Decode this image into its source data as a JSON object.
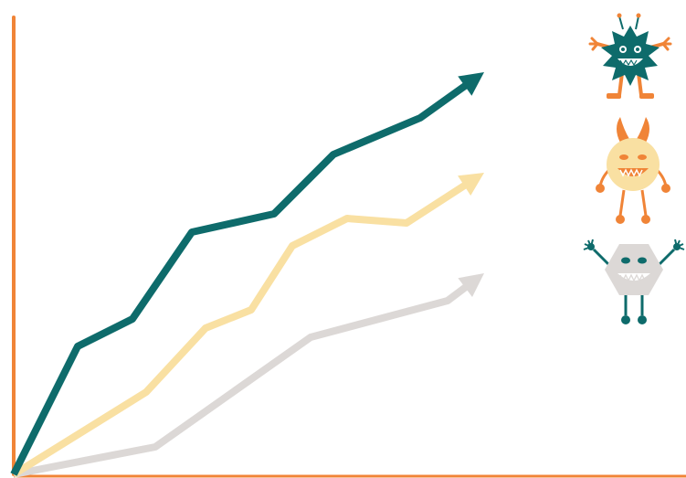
{
  "colors": {
    "axis": "#f08437",
    "teal": "#0e6b6b",
    "yellow": "#f9e0a2",
    "gray": "#dcd8d6",
    "orange": "#f08437",
    "white": "#ffffff"
  },
  "chart_data": {
    "type": "line",
    "title": "",
    "xlabel": "",
    "ylabel": "",
    "grid": false,
    "legend": "none",
    "xlim": [
      0,
      12
    ],
    "ylim": [
      0,
      10
    ],
    "series": [
      {
        "color": "teal",
        "end_icon": "spiky-monster-icon",
        "x": [
          0,
          1.4,
          2.6,
          3.9,
          5.7,
          7.0,
          8.9,
          10.3
        ],
        "y": [
          0,
          2.8,
          3.4,
          5.3,
          5.7,
          7.0,
          7.8,
          8.8
        ]
      },
      {
        "color": "yellow",
        "end_icon": "horned-monster-icon",
        "x": [
          0,
          2.9,
          4.2,
          5.2,
          6.1,
          7.3,
          8.6,
          10.3
        ],
        "y": [
          0,
          1.8,
          3.2,
          3.6,
          5.0,
          5.6,
          5.5,
          6.6
        ]
      },
      {
        "color": "gray",
        "end_icon": "hexagon-monster-icon",
        "x": [
          0,
          3.1,
          6.5,
          9.5,
          10.3
        ],
        "y": [
          0,
          0.6,
          3.0,
          3.8,
          4.4
        ]
      }
    ]
  }
}
